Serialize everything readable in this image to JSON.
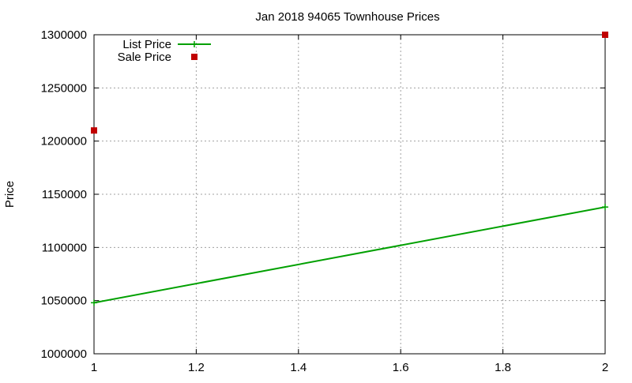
{
  "chart_data": {
    "type": "line",
    "title": "Jan 2018 94065 Townhouse Prices",
    "xlabel": "",
    "ylabel": "Price",
    "xlim": [
      1,
      2
    ],
    "ylim": [
      1000000,
      1300000
    ],
    "xticks": [
      1,
      1.2,
      1.4,
      1.6,
      1.8,
      2
    ],
    "xtick_labels": [
      "1",
      "1.2",
      "1.4",
      "1.6",
      "1.8",
      "2"
    ],
    "yticks": [
      1000000,
      1050000,
      1100000,
      1150000,
      1200000,
      1250000,
      1300000
    ],
    "ytick_labels": [
      "1000000",
      "1050000",
      "1100000",
      "1150000",
      "1200000",
      "1250000",
      "1300000"
    ],
    "grid": true,
    "legend_position": "top-left",
    "series": [
      {
        "name": "List Price",
        "style": "line-with-cross-markers",
        "color": "#00a000",
        "points": [
          {
            "x": 1,
            "y": 1048000
          },
          {
            "x": 2,
            "y": 1138000
          }
        ]
      },
      {
        "name": "Sale Price",
        "style": "square-markers",
        "color": "#c00000",
        "points": [
          {
            "x": 1,
            "y": 1210000
          },
          {
            "x": 2,
            "y": 1300000
          }
        ]
      }
    ]
  }
}
